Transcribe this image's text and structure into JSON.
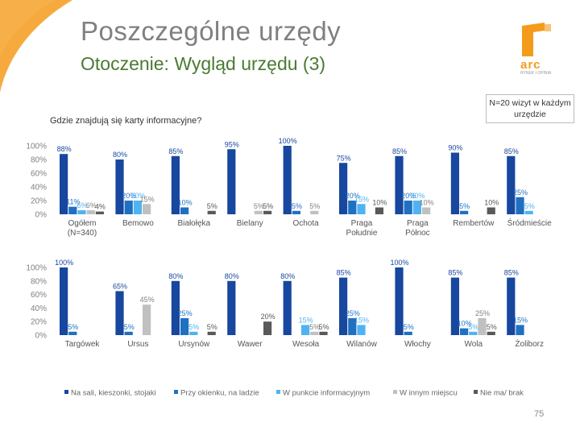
{
  "header": {
    "title": "Poszczególne urzędy",
    "subtitle": "Otoczenie: Wygląd urzędu (3)",
    "logo_text": "arc",
    "logo_sub": "RYNEK I OPINIA"
  },
  "note": "N=20 wizyt w każdym urzędzie",
  "question": "Gdzie znajdują się karty informacyjne?",
  "page_number": "75",
  "colors": {
    "swoosh": "#f59b1c",
    "na_sali": "#17479e",
    "przy_okienku": "#1f70c1",
    "punkt_info": "#4fb3f2",
    "inne_miejsce": "#c0c0c0",
    "nie_ma": "#595959",
    "title": "#808080",
    "subtitle": "#4a7a32"
  },
  "chart_data": {
    "type": "bar",
    "y_ticks": [
      "100%",
      "80%",
      "60%",
      "40%",
      "20%",
      "0%"
    ],
    "ylim": [
      0,
      100
    ],
    "legend": [
      "Na sali, kieszonki, stojaki",
      "Przy okienku, na ladzie",
      "W punkcie informacyjnym",
      "W innym miejscu",
      "Nie ma/ brak"
    ],
    "legend_position": "bottom",
    "rows": [
      {
        "categories": [
          {
            "label": [
              "Ogółem",
              "(N=340)"
            ],
            "values": [
              88,
              11,
              6,
              6,
              4
            ],
            "labels": [
              "88%",
              "11%",
              "6%",
              "6%",
              "4%"
            ]
          },
          {
            "label": [
              "Bemowo"
            ],
            "values": [
              80,
              20,
              20,
              15,
              null
            ],
            "labels": [
              "80%",
              "20%",
              "20%",
              "15%",
              ""
            ]
          },
          {
            "label": [
              "Białołęka"
            ],
            "values": [
              85,
              10,
              null,
              null,
              5
            ],
            "labels": [
              "85%",
              "10%",
              "",
              "",
              "5%"
            ]
          },
          {
            "label": [
              "Bielany"
            ],
            "values": [
              95,
              null,
              null,
              5,
              5
            ],
            "labels": [
              "95%",
              "",
              "",
              "5%",
              "5%"
            ]
          },
          {
            "label": [
              "Ochota"
            ],
            "values": [
              100,
              5,
              null,
              5,
              null
            ],
            "labels": [
              "100%",
              "5%",
              "",
              "5%",
              ""
            ]
          },
          {
            "label": [
              "Praga",
              "Południe"
            ],
            "values": [
              75,
              20,
              15,
              null,
              10
            ],
            "labels": [
              "75%",
              "20%",
              "15%",
              "",
              "10%"
            ]
          },
          {
            "label": [
              "Praga",
              "Północ"
            ],
            "values": [
              85,
              20,
              20,
              10,
              null
            ],
            "labels": [
              "85%",
              "20%",
              "20%",
              "10%",
              ""
            ]
          },
          {
            "label": [
              "Rembertów"
            ],
            "values": [
              90,
              5,
              null,
              null,
              10
            ],
            "labels": [
              "90%",
              "5%",
              "",
              "",
              "10%"
            ]
          },
          {
            "label": [
              "Śródmieście"
            ],
            "values": [
              85,
              25,
              5,
              null,
              null
            ],
            "labels": [
              "85%",
              "25%",
              "5%",
              "",
              ""
            ]
          }
        ]
      },
      {
        "categories": [
          {
            "label": [
              "Targówek"
            ],
            "values": [
              100,
              5,
              null,
              null,
              null
            ],
            "labels": [
              "100%",
              "5%",
              "",
              "",
              ""
            ]
          },
          {
            "label": [
              "Ursus"
            ],
            "values": [
              65,
              5,
              null,
              45,
              null
            ],
            "labels": [
              "65%",
              "5%",
              "",
              "45%",
              ""
            ]
          },
          {
            "label": [
              "Ursynów"
            ],
            "values": [
              80,
              25,
              5,
              null,
              5
            ],
            "labels": [
              "80%",
              "25%",
              "5%",
              "",
              "5%"
            ]
          },
          {
            "label": [
              "Wawer"
            ],
            "values": [
              80,
              null,
              null,
              null,
              20
            ],
            "labels": [
              "80%",
              "",
              "",
              "",
              "20%"
            ]
          },
          {
            "label": [
              "Wesoła"
            ],
            "values": [
              80,
              null,
              15,
              5,
              5
            ],
            "labels": [
              "80%",
              "",
              "15%",
              "5%",
              "5%"
            ]
          },
          {
            "label": [
              "Wilanów"
            ],
            "values": [
              85,
              25,
              15,
              null,
              null
            ],
            "labels": [
              "85%",
              "25%",
              "15%",
              "",
              ""
            ]
          },
          {
            "label": [
              "Włochy"
            ],
            "values": [
              100,
              5,
              null,
              null,
              null
            ],
            "labels": [
              "100%",
              "5%",
              "",
              "",
              ""
            ]
          },
          {
            "label": [
              "Wola"
            ],
            "values": [
              85,
              10,
              5,
              25,
              5
            ],
            "labels": [
              "85%",
              "10%",
              "5%",
              "25%",
              "5%"
            ]
          },
          {
            "label": [
              "Żoliborz"
            ],
            "values": [
              85,
              15,
              null,
              null,
              null
            ],
            "labels": [
              "85%",
              "15%",
              "",
              "",
              ""
            ]
          }
        ]
      }
    ]
  }
}
